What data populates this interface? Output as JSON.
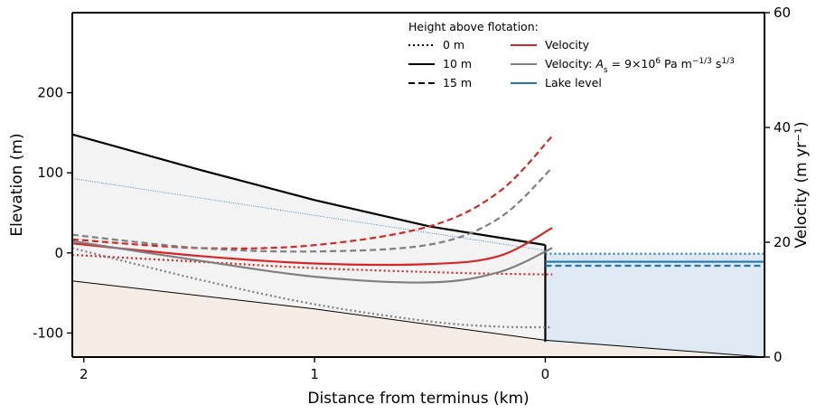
{
  "chart_data": {
    "type": "line",
    "xlabel": "Distance from terminus (km)",
    "ylabel": "Elevation (m)",
    "y2label": "Velocity (m yr⁻¹)",
    "xlim": [
      2.05,
      -0.95
    ],
    "ylim": [
      -130,
      300
    ],
    "y2lim": [
      0,
      60
    ],
    "x_ticks": [
      2,
      1,
      0
    ],
    "x_tick_labels": [
      "2",
      "1",
      "0"
    ],
    "y_ticks": [
      -100,
      0,
      100,
      200
    ],
    "y_tick_labels": [
      "-100",
      "0",
      "100",
      "200"
    ],
    "y2_ticks": [
      0,
      20,
      40,
      60
    ],
    "y2_tick_labels": [
      "0",
      "20",
      "40",
      "60"
    ],
    "legend_title": "Height above flotation:",
    "legend_placement": "top-right",
    "legend": [
      {
        "label": "0 m",
        "style": "dotted",
        "color": "#000000"
      },
      {
        "label": "10 m",
        "style": "solid",
        "color": "#000000"
      },
      {
        "label": "15 m",
        "style": "dashed",
        "color": "#000000"
      },
      {
        "label": "Velocity",
        "style": "solid",
        "color": "#d62728"
      },
      {
        "label": "Velocity: A_s = 9×10⁶ Pa m⁻¹ᐟ³ s¹ᐟ³",
        "style": "solid",
        "color": "#7f7f7f"
      },
      {
        "label": "Lake level",
        "style": "solid",
        "color": "#1f77b4"
      }
    ],
    "legend_math": {
      "as_prefix": "Velocity: ",
      "as_symbol": "A",
      "as_subscript": "s",
      "as_value": " = 9×10",
      "as_exp": "6",
      "as_units_a": " Pa m",
      "as_exp2": "−1/3",
      "as_units_b": " s",
      "as_exp3": "1/3"
    },
    "surface": [
      {
        "x": 2.05,
        "y": 148
      },
      {
        "x": 1.5,
        "y": 104
      },
      {
        "x": 1.0,
        "y": 66
      },
      {
        "x": 0.5,
        "y": 33
      },
      {
        "x": 0.0,
        "y": 10
      }
    ],
    "bed": [
      {
        "x": 2.05,
        "y": -35
      },
      {
        "x": 1.0,
        "y": -70
      },
      {
        "x": 0.0,
        "y": -109
      },
      {
        "x": -0.95,
        "y": -130
      }
    ],
    "terminus": {
      "x": 0.0,
      "top": 10,
      "bottom": -111
    },
    "reference_line": [
      {
        "x": 2.05,
        "y": 93
      },
      {
        "x": 0.0,
        "y": 3
      }
    ],
    "lake_levels": [
      {
        "height_above_flotation": "0 m",
        "style": "dotted",
        "y": -1
      },
      {
        "height_above_flotation": "10 m",
        "style": "solid",
        "y": -11
      },
      {
        "height_above_flotation": "15 m",
        "style": "dashed",
        "y": -16
      }
    ],
    "velocity_series": [
      {
        "style": "dotted",
        "color": "#d62728",
        "x": [
          2.05,
          1.5,
          1.0,
          0.5,
          0.2,
          -0.03
        ],
        "v": [
          17.8,
          16.6,
          15.5,
          14.8,
          14.5,
          14.4
        ]
      },
      {
        "style": "solid",
        "color": "#d62728",
        "x": [
          2.05,
          1.5,
          1.0,
          0.5,
          0.2,
          -0.03
        ],
        "v": [
          19.8,
          17.6,
          16.3,
          16.2,
          17.6,
          22.5
        ]
      },
      {
        "style": "dashed",
        "color": "#d62728",
        "x": [
          2.05,
          1.5,
          1.0,
          0.5,
          0.2,
          -0.03
        ],
        "v": [
          20.5,
          19.0,
          19.5,
          22.8,
          28.8,
          38.5
        ]
      },
      {
        "style": "dotted",
        "color": "#7f7f7f",
        "x": [
          2.05,
          1.5,
          1.0,
          0.5,
          0.2,
          -0.03
        ],
        "v": [
          19.0,
          13.5,
          9.2,
          6.2,
          5.3,
          5.2
        ]
      },
      {
        "style": "solid",
        "color": "#7f7f7f",
        "x": [
          2.05,
          1.5,
          1.0,
          0.5,
          0.2,
          -0.03
        ],
        "v": [
          20.2,
          16.8,
          14.0,
          13.0,
          14.8,
          19.0
        ]
      },
      {
        "style": "dashed",
        "color": "#7f7f7f",
        "x": [
          2.05,
          1.5,
          1.0,
          0.5,
          0.2,
          -0.03
        ],
        "v": [
          21.3,
          19.0,
          18.4,
          19.6,
          24.2,
          33.0
        ]
      }
    ],
    "colors": {
      "ice": "#f3f3f3",
      "bedrock": "#f5ece6",
      "lake": "#dfe9f3",
      "outline": "#000000",
      "reference": "#1f77b4"
    }
  }
}
